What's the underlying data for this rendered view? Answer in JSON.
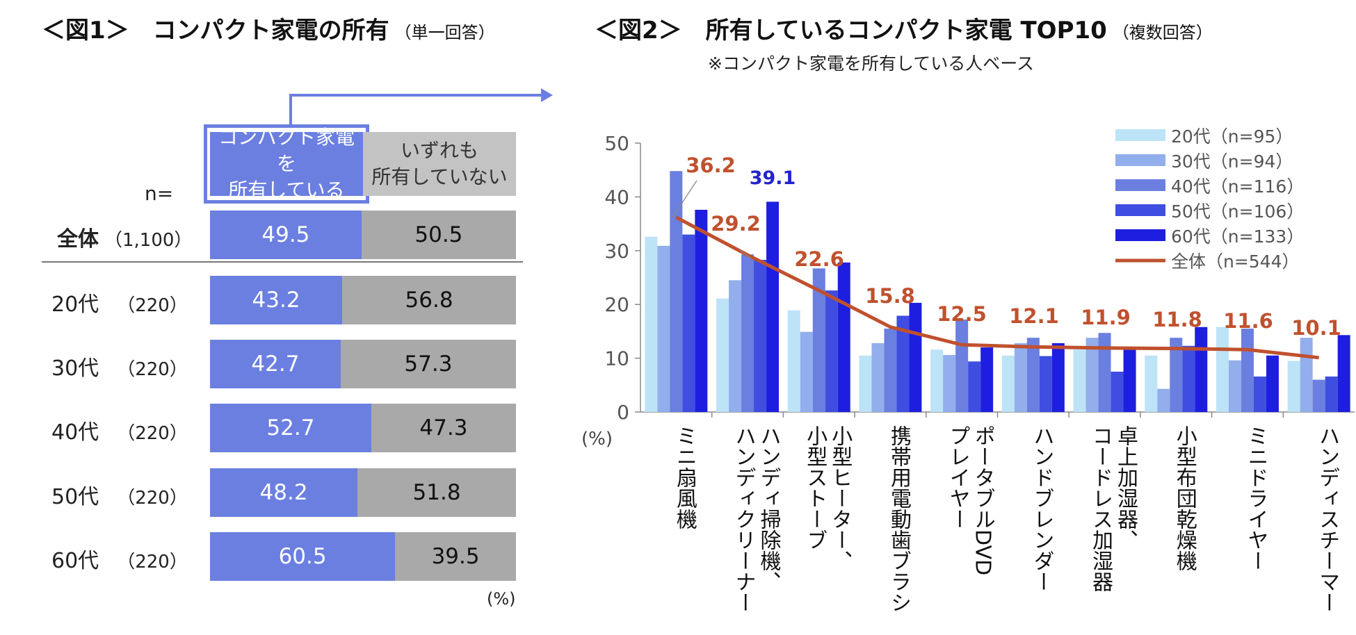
{
  "fig1": {
    "title": "＜図1＞　コンパクト家電の所有",
    "title_sub": "（単一回答）",
    "col_own": "コンパクト家電を所有している",
    "col_own_l1": "コンパクト家電を",
    "col_own_l2": "所有している",
    "col_not_l1": "いずれも",
    "col_not_l2": "所有していない",
    "n_label": "n=",
    "unit": "(%)",
    "rows": [
      {
        "label": "全体",
        "n": "（1,100）",
        "own": "49.5",
        "not": "50.5"
      },
      {
        "label": "20代",
        "n": "（220）",
        "own": "43.2",
        "not": "56.8"
      },
      {
        "label": "30代",
        "n": "（220）",
        "own": "42.7",
        "not": "57.3"
      },
      {
        "label": "40代",
        "n": "（220）",
        "own": "52.7",
        "not": "47.3"
      },
      {
        "label": "50代",
        "n": "（220）",
        "own": "48.2",
        "not": "51.8"
      },
      {
        "label": "60代",
        "n": "（220）",
        "own": "60.5",
        "not": "39.5"
      }
    ]
  },
  "fig2": {
    "title": "＜図2＞　所有しているコンパクト家電 TOP10",
    "title_sub": "（複数回答）",
    "note": "※コンパクト家電を所有している人ベース"
  },
  "chart_data": {
    "type": "bar",
    "title": "所有しているコンパクト家電 TOP10",
    "ylabel": "(%)",
    "ylim": [
      0,
      50
    ],
    "yticks": [
      "0",
      "10",
      "20",
      "30",
      "40",
      "50"
    ],
    "categories": [
      [
        "ミニ扇風機"
      ],
      [
        "ハンディ掃除機、",
        "ハンディクリーナー"
      ],
      [
        "小型ヒーター、",
        "小型ストーブ"
      ],
      [
        "携帯用電動歯ブラシ"
      ],
      [
        "ポータブルDVD",
        "プレイヤー"
      ],
      [
        "ハンドブレンダー"
      ],
      [
        "卓上加湿器、",
        "コードレス加湿器"
      ],
      [
        "小型布団乾燥機"
      ],
      [
        "ミニドライヤー"
      ],
      [
        "ハンディスチーマー"
      ]
    ],
    "series": [
      {
        "name": "20代（n=95）",
        "color": "#bde3f7",
        "values": [
          32.6,
          21.1,
          18.9,
          10.5,
          11.6,
          10.5,
          11.6,
          10.5,
          15.8,
          9.5
        ]
      },
      {
        "name": "30代（n=94）",
        "color": "#93aeec",
        "values": [
          30.9,
          24.5,
          14.9,
          12.8,
          10.6,
          12.8,
          13.8,
          4.3,
          9.6,
          13.8
        ]
      },
      {
        "name": "40代（n=116）",
        "color": "#6b7fe0",
        "values": [
          44.8,
          29.3,
          26.7,
          15.5,
          17.2,
          13.8,
          14.7,
          13.8,
          15.5,
          6.0
        ]
      },
      {
        "name": "50代（n=106）",
        "color": "#3f4ee0",
        "values": [
          33.0,
          28.3,
          22.6,
          17.9,
          9.4,
          10.4,
          7.5,
          12.3,
          6.6,
          6.6
        ]
      },
      {
        "name": "60代（n=133）",
        "color": "#1e1ee0",
        "values": [
          37.6,
          39.1,
          27.8,
          20.3,
          12.0,
          12.8,
          12.0,
          15.8,
          10.5,
          14.3
        ]
      }
    ],
    "line": {
      "name": "全体（n=544）",
      "color": "#c0512e",
      "values": [
        36.2,
        29.2,
        22.6,
        15.8,
        12.5,
        12.1,
        11.9,
        11.8,
        11.6,
        10.1
      ]
    },
    "highlight_label": {
      "text": "39.1",
      "color": "#2424cc"
    }
  }
}
